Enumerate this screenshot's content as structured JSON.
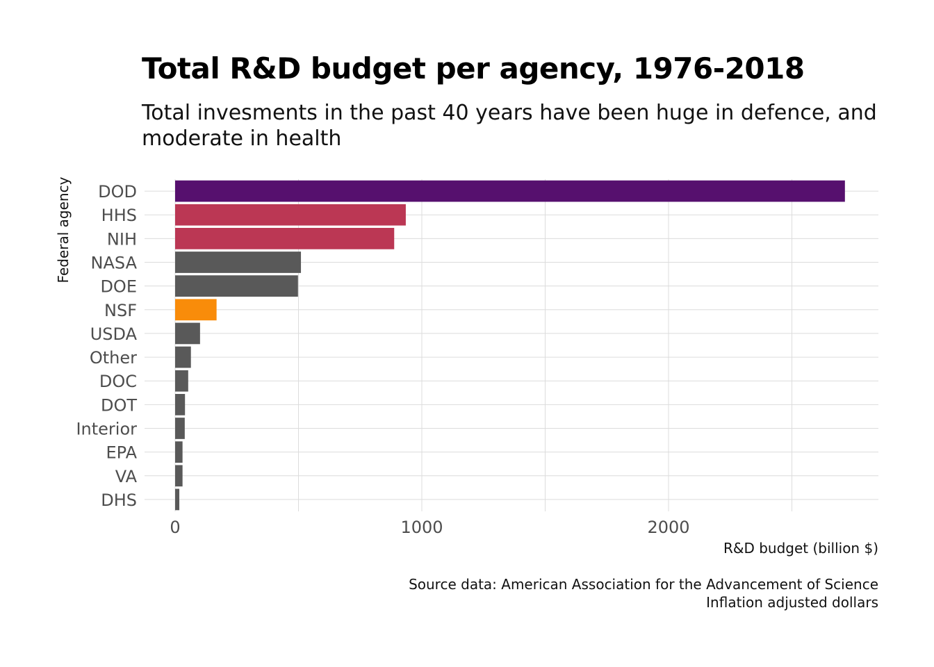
{
  "chart_data": {
    "type": "bar",
    "orientation": "horizontal",
    "title": "Total R&D budget per agency, 1976-2018",
    "subtitle": "Total invesments in the past 40 years have been huge in defence, and moderate in health",
    "xlabel": "R&D budget (billion $)",
    "ylabel": "Federal agency",
    "caption": [
      "Source data: American Association for the Advancement of Science",
      "Inflation adjusted dollars"
    ],
    "categories": [
      "DOD",
      "HHS",
      "NIH",
      "NASA",
      "DOE",
      "NSF",
      "USDA",
      "Other",
      "DOC",
      "DOT",
      "Interior",
      "EPA",
      "VA",
      "DHS"
    ],
    "values": [
      2715,
      935,
      888,
      510,
      498,
      168,
      101,
      64,
      53,
      40,
      39,
      30,
      30,
      17
    ],
    "colors": [
      "#56106e",
      "#bb3754",
      "#bb3754",
      "#595959",
      "#595959",
      "#f98c0a",
      "#595959",
      "#595959",
      "#595959",
      "#595959",
      "#595959",
      "#595959",
      "#595959",
      "#595959"
    ],
    "xlim": [
      0,
      2850
    ],
    "xticks": [
      0,
      1000,
      2000
    ],
    "grid": true,
    "legend": "none"
  }
}
